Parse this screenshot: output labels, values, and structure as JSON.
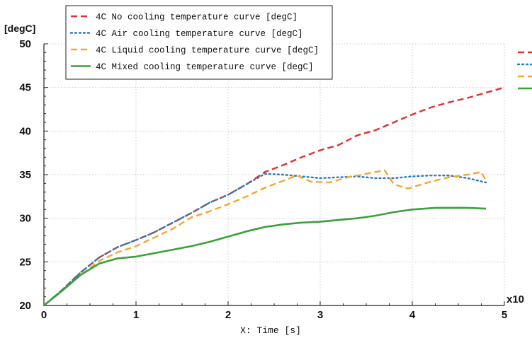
{
  "chart_data": {
    "type": "line",
    "title": "",
    "ylabel": "[degC]",
    "xlabel": "X: Time [s]",
    "x_multiplier_label": "x10",
    "xlim": [
      0,
      5
    ],
    "ylim": [
      20,
      50
    ],
    "x_ticks": [
      0,
      1,
      2,
      3,
      4,
      5
    ],
    "y_ticks": [
      20,
      25,
      30,
      35,
      40,
      45,
      50
    ],
    "x_tick_labels": [
      "0",
      "1",
      "2",
      "3",
      "4",
      "5"
    ],
    "y_tick_labels": [
      "20",
      "25",
      "30",
      "35",
      "40",
      "45",
      "50"
    ],
    "grid": true,
    "legend_position": "top-left",
    "series": [
      {
        "name": "4C No cooling temperature curve [degC]",
        "color": "#e03030",
        "style": "dashed",
        "x": [
          0,
          0.2,
          0.4,
          0.6,
          0.8,
          1.0,
          1.2,
          1.4,
          1.6,
          1.8,
          2.0,
          2.2,
          2.4,
          2.6,
          2.8,
          3.0,
          3.2,
          3.4,
          3.6,
          3.8,
          4.0,
          4.2,
          4.4,
          4.6,
          4.8,
          5.0
        ],
        "values": [
          20.0,
          21.8,
          23.8,
          25.5,
          26.7,
          27.5,
          28.4,
          29.5,
          30.6,
          31.8,
          32.7,
          33.9,
          35.3,
          36.1,
          37.0,
          37.8,
          38.4,
          39.5,
          40.1,
          41.0,
          41.9,
          42.7,
          43.3,
          43.8,
          44.4,
          45.0
        ]
      },
      {
        "name": "4C Air cooling temperature curve [degC]",
        "color": "#2e7ab4",
        "style": "dotted",
        "x": [
          0,
          0.2,
          0.4,
          0.6,
          0.8,
          1.0,
          1.2,
          1.4,
          1.6,
          1.8,
          2.0,
          2.2,
          2.4,
          2.6,
          2.8,
          3.0,
          3.2,
          3.4,
          3.6,
          3.8,
          4.0,
          4.2,
          4.4,
          4.6,
          4.8
        ],
        "values": [
          20.0,
          21.8,
          23.8,
          25.5,
          26.7,
          27.5,
          28.4,
          29.5,
          30.6,
          31.8,
          32.7,
          33.9,
          35.1,
          35.0,
          34.8,
          34.6,
          34.7,
          34.8,
          34.6,
          34.6,
          34.8,
          34.9,
          34.9,
          34.6,
          34.1
        ]
      },
      {
        "name": "4C Liquid cooling temperature curve [degC]",
        "color": "#f0a830",
        "style": "dashed",
        "x": [
          0,
          0.2,
          0.4,
          0.6,
          0.8,
          1.0,
          1.2,
          1.4,
          1.6,
          1.8,
          2.0,
          2.2,
          2.4,
          2.6,
          2.75,
          2.9,
          3.1,
          3.3,
          3.5,
          3.7,
          3.8,
          3.95,
          4.2,
          4.4,
          4.6,
          4.75,
          4.8
        ],
        "values": [
          20.0,
          21.7,
          23.5,
          25.1,
          26.1,
          26.8,
          27.8,
          28.8,
          30.1,
          30.8,
          31.6,
          32.5,
          33.5,
          34.3,
          34.9,
          34.2,
          34.1,
          34.7,
          35.1,
          35.5,
          33.9,
          33.4,
          34.2,
          34.7,
          35.0,
          35.3,
          34.3
        ]
      },
      {
        "name": "4C Mixed cooling temperature curve [degC]",
        "color": "#3aa03a",
        "style": "solid",
        "x": [
          0,
          0.2,
          0.4,
          0.6,
          0.8,
          1.0,
          1.2,
          1.4,
          1.6,
          1.8,
          2.0,
          2.2,
          2.4,
          2.6,
          2.8,
          3.0,
          3.2,
          3.4,
          3.6,
          3.8,
          4.0,
          4.25,
          4.4,
          4.6,
          4.8
        ],
        "values": [
          20.0,
          21.7,
          23.5,
          24.8,
          25.4,
          25.6,
          26.0,
          26.4,
          26.8,
          27.3,
          27.9,
          28.5,
          29.0,
          29.3,
          29.5,
          29.6,
          29.8,
          30.0,
          30.3,
          30.7,
          31.0,
          31.2,
          31.2,
          31.2,
          31.1
        ]
      }
    ]
  }
}
